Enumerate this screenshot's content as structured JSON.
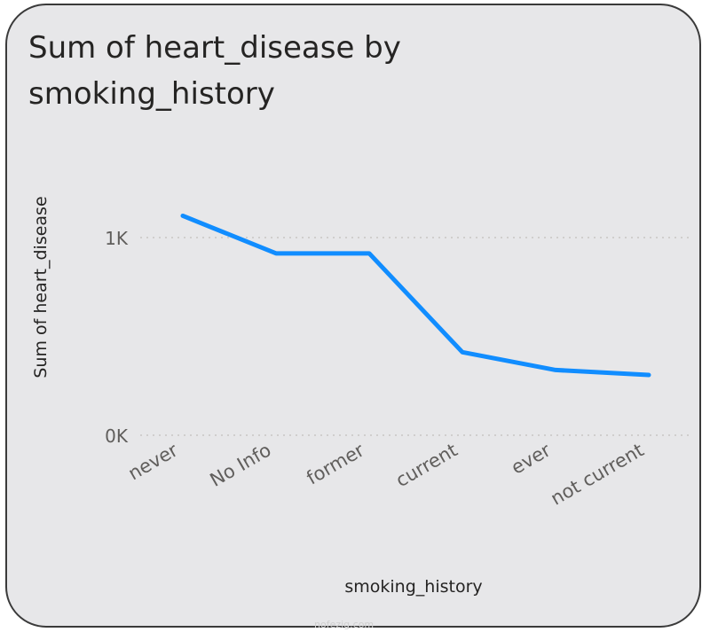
{
  "chart_data": {
    "type": "line",
    "title": "Sum of heart_disease by smoking_history",
    "xlabel": "smoking_history",
    "ylabel": "Sum of heart_disease",
    "categories": [
      "never",
      "No Info",
      "former",
      "current",
      "ever",
      "not current"
    ],
    "series": [
      {
        "values": [
          1110,
          920,
          920,
          420,
          330,
          305
        ]
      }
    ],
    "yticks": [
      {
        "value": 0,
        "label": "0K"
      },
      {
        "value": 1000,
        "label": "1K"
      }
    ],
    "ylim": [
      0,
      1000
    ],
    "grid": "dotted horizontal",
    "line_color": "#118dff"
  },
  "watermark": "nofezig.com"
}
